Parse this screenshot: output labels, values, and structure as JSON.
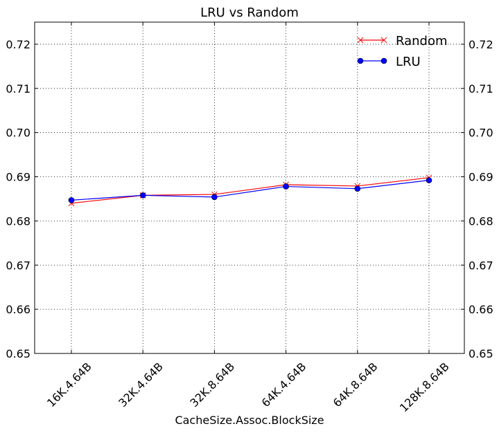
{
  "chart_data": {
    "type": "line",
    "title": "LRU vs Random",
    "xlabel": "CacheSize.Assoc.BlockSize",
    "ylabel": "",
    "categories": [
      "16K.4.64B",
      "32K.4.64B",
      "32K.8.64B",
      "64K.4.64B",
      "64K.8.64B",
      "128K.8.64B"
    ],
    "ylim": [
      0.65,
      0.725
    ],
    "yticks": [
      "0.65",
      "0.66",
      "0.67",
      "0.68",
      "0.69",
      "0.70",
      "0.71",
      "0.72"
    ],
    "grid": true,
    "legend_position": "top-right",
    "series": [
      {
        "name": "Random",
        "color": "#ff0000",
        "marker": "x",
        "values": [
          0.684,
          0.6858,
          0.686,
          0.6882,
          0.6879,
          0.6898
        ]
      },
      {
        "name": "LRU",
        "color": "#0000ff",
        "marker": "circle",
        "values": [
          0.6847,
          0.6858,
          0.6854,
          0.6878,
          0.6873,
          0.6892
        ]
      }
    ]
  }
}
